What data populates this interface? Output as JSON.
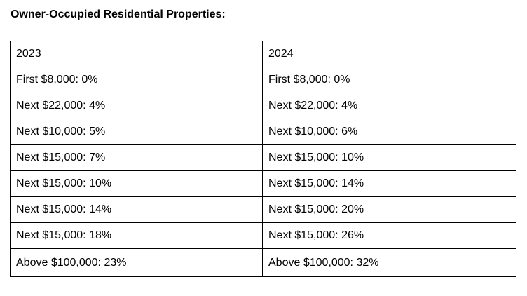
{
  "document": {
    "heading": "Owner-Occupied Residential Properties:",
    "table": {
      "columns": [
        "2023",
        "2024"
      ],
      "rows": [
        [
          "First $8,000: 0%",
          "First $8,000: 0%"
        ],
        [
          "Next $22,000: 4%",
          "Next $22,000: 4%"
        ],
        [
          "Next $10,000: 5%",
          "Next $10,000: 6%"
        ],
        [
          "Next $15,000: 7%",
          "Next $15,000: 10%"
        ],
        [
          "Next $15,000: 10%",
          "Next $15,000: 14%"
        ],
        [
          "Next $15,000: 14%",
          "Next $15,000: 20%"
        ],
        [
          "Next $15,000: 18%",
          "Next $15,000: 26%"
        ],
        [
          "Above $100,000: 23%",
          "Above $100,000: 32%"
        ]
      ]
    }
  }
}
